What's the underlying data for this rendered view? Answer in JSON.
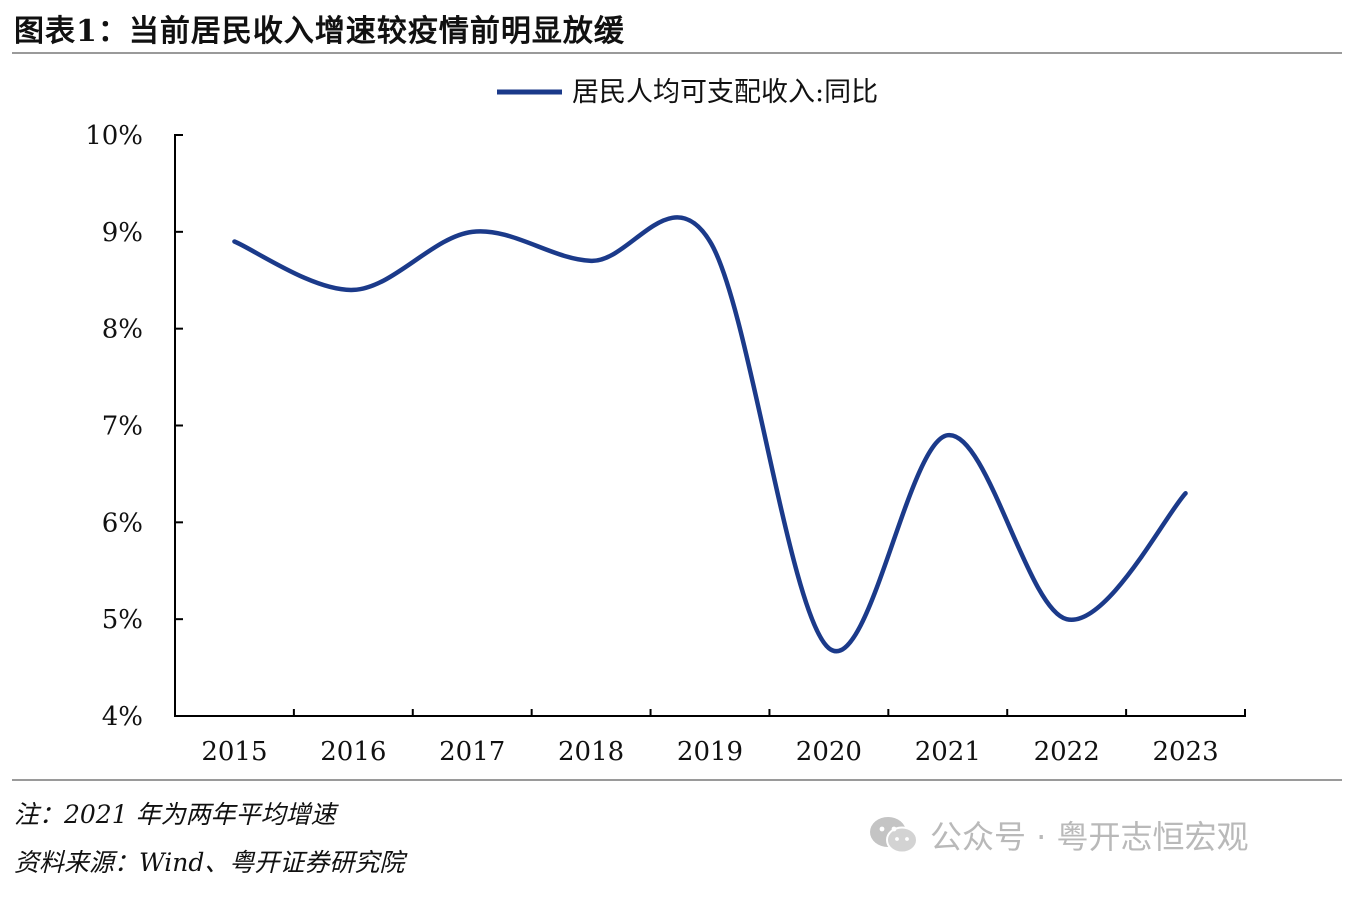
{
  "figure": {
    "title": "图表1：当前居民收入增速较疫情前明显放缓",
    "note": "注：2021 年为两年平均增速",
    "source": "资料来源：Wind、粤开证券研究院"
  },
  "watermark": {
    "text": "公众号 · 粤开志恒宏观",
    "icon": "wechat-icon"
  },
  "colors": {
    "series": "#1b3a8a",
    "axis": "#000000",
    "rule": "#9a9a9a"
  },
  "chart_data": {
    "type": "line",
    "title": "",
    "xlabel": "",
    "ylabel": "",
    "categories": [
      "2015",
      "2016",
      "2017",
      "2018",
      "2019",
      "2020",
      "2021",
      "2022",
      "2023"
    ],
    "series": [
      {
        "name": "居民人均可支配收入:同比",
        "values": [
          8.9,
          8.4,
          9.0,
          8.7,
          8.9,
          4.7,
          6.9,
          5.0,
          6.3
        ]
      }
    ],
    "ylim": [
      4,
      10
    ],
    "yticks": [
      4,
      5,
      6,
      7,
      8,
      9,
      10
    ],
    "ytick_labels": [
      "4%",
      "5%",
      "6%",
      "7%",
      "8%",
      "9%",
      "10%"
    ],
    "grid": false,
    "legend": "top-center",
    "smooth": true
  }
}
